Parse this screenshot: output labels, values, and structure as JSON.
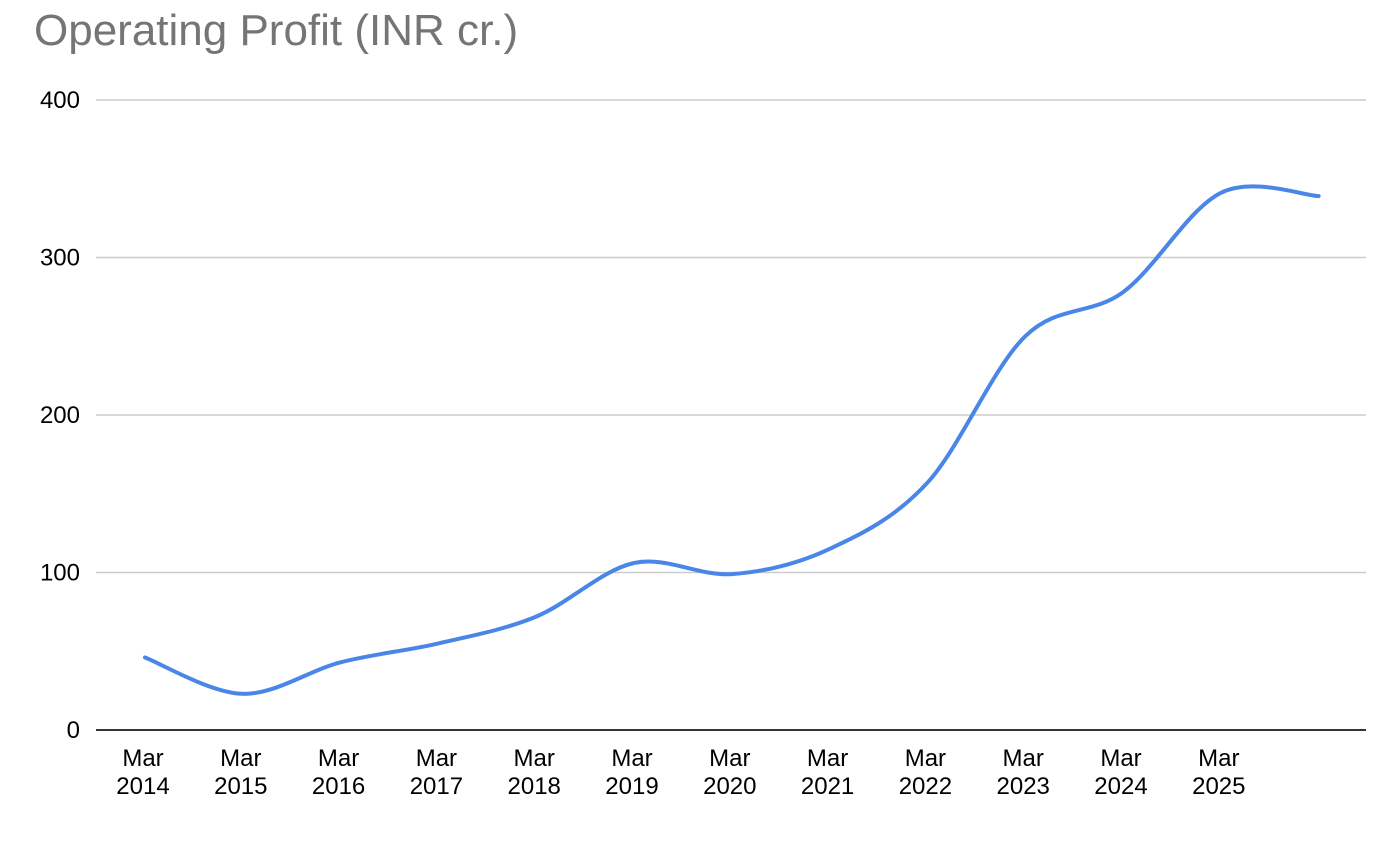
{
  "chart_data": {
    "type": "line",
    "title": "Operating Profit (INR cr.)",
    "xlabel": "",
    "ylabel": "",
    "categories": [
      "Mar 2014",
      "Mar 2015",
      "Mar 2016",
      "Mar 2017",
      "Mar 2018",
      "Mar 2019",
      "Mar 2020",
      "Mar 2021",
      "Mar 2022",
      "Mar 2023",
      "Mar 2024",
      "Mar 2025",
      ""
    ],
    "tick_labels": [
      {
        "line1": "Mar",
        "line2": "2014"
      },
      {
        "line1": "Mar",
        "line2": "2015"
      },
      {
        "line1": "Mar",
        "line2": "2016"
      },
      {
        "line1": "Mar",
        "line2": "2017"
      },
      {
        "line1": "Mar",
        "line2": "2018"
      },
      {
        "line1": "Mar",
        "line2": "2019"
      },
      {
        "line1": "Mar",
        "line2": "2020"
      },
      {
        "line1": "Mar",
        "line2": "2021"
      },
      {
        "line1": "Mar",
        "line2": "2022"
      },
      {
        "line1": "Mar",
        "line2": "2023"
      },
      {
        "line1": "Mar",
        "line2": "2024"
      },
      {
        "line1": "Mar",
        "line2": "2025"
      }
    ],
    "series": [
      {
        "values": [
          46,
          23,
          43,
          55,
          72,
          106,
          99,
          115,
          157,
          250,
          278,
          341,
          339
        ]
      }
    ],
    "ylim": [
      0,
      400
    ],
    "yticks": [
      "0",
      "100",
      "200",
      "300",
      "400"
    ],
    "grid": true,
    "legend": "none",
    "colors": {
      "line": "#4a86e8",
      "grid": "#cccccc",
      "axis": "#333333",
      "title": "#757575"
    }
  }
}
